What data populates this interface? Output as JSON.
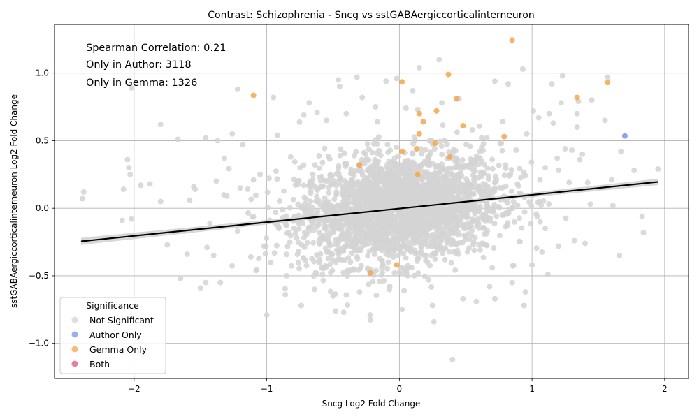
{
  "chart_data": {
    "type": "scatter",
    "title": "Contrast: Schizophrenia - Sncg vs sstGABAergiccorticalinterneuron",
    "xlabel": "Sncg Log2 Fold Change",
    "ylabel": "sstGABAergiccorticalinterneuron Log2 Fold Change",
    "xlim": [
      -2.6,
      2.18
    ],
    "ylim": [
      -1.26,
      1.36
    ],
    "xticks": [
      -2,
      -1,
      0,
      1,
      2
    ],
    "yticks": [
      -1.0,
      -0.5,
      0.0,
      0.5,
      1.0
    ],
    "xtick_labels": [
      "−2",
      "−1",
      "0",
      "1",
      "2"
    ],
    "ytick_labels": [
      "−1.0",
      "−0.5",
      "0.0",
      "0.5",
      "1.0"
    ],
    "grid": true,
    "annotations": [
      "Spearman Correlation: 0.21",
      "Only in Author: 3118",
      "Only in Gemma: 1326"
    ],
    "legend": {
      "title": "Significance",
      "placement": "lower-left",
      "entries": [
        {
          "label": "Not Significant",
          "color": "#d3d3d3"
        },
        {
          "label": "Author Only",
          "color": "#7b93e6"
        },
        {
          "label": "Gemma Only",
          "color": "#f5a54a"
        },
        {
          "label": "Both",
          "color": "#e0557a"
        }
      ]
    },
    "regression_line": {
      "x": [
        -2.4,
        1.95
      ],
      "y": [
        -0.245,
        0.195
      ],
      "color": "#000000"
    },
    "series": [
      {
        "name": "Not Significant",
        "color": "#d3d3d3",
        "points": [
          [
            -2.38,
            0.12
          ],
          [
            -2.39,
            0.07
          ],
          [
            -2.02,
            0.89
          ],
          [
            -2.05,
            0.36
          ],
          [
            -2.04,
            0.3
          ],
          [
            -2.03,
            0.25
          ],
          [
            -1.95,
            0.17
          ],
          [
            -1.88,
            0.18
          ],
          [
            -1.8,
            0.62
          ],
          [
            -1.8,
            0.05
          ],
          [
            -2.08,
            0.14
          ],
          [
            -2.09,
            -0.09
          ],
          [
            -2.02,
            -0.08
          ],
          [
            -1.75,
            -0.27
          ],
          [
            -1.67,
            0.51
          ],
          [
            -1.65,
            -0.52
          ],
          [
            -1.62,
            -0.17
          ],
          [
            -1.58,
            0.06
          ],
          [
            -1.55,
            0.16
          ],
          [
            -1.54,
            0.14
          ],
          [
            -1.5,
            -0.59
          ],
          [
            -1.46,
            -0.55
          ],
          [
            -1.46,
            0.52
          ],
          [
            -1.4,
            -0.35
          ],
          [
            -1.38,
            0.2
          ],
          [
            -1.37,
            0.5
          ],
          [
            -1.35,
            -0.55
          ],
          [
            -1.32,
            0.37
          ],
          [
            -1.3,
            0.09
          ],
          [
            -1.26,
            0.55
          ],
          [
            -1.22,
            -0.17
          ],
          [
            -1.2,
            0.15
          ],
          [
            -1.18,
            0.47
          ],
          [
            -1.12,
            -0.36
          ],
          [
            -1.08,
            -0.46
          ],
          [
            -1.05,
            0.25
          ],
          [
            -1.02,
            -0.28
          ],
          [
            -1.0,
            -0.79
          ],
          [
            -0.95,
            0.82
          ],
          [
            -0.92,
            0.54
          ],
          [
            -0.86,
            -0.64
          ],
          [
            -0.82,
            0.38
          ],
          [
            -0.74,
            -0.72
          ],
          [
            -0.72,
            0.69
          ],
          [
            -0.68,
            0.78
          ],
          [
            -0.64,
            -0.6
          ],
          [
            -0.62,
            0.71
          ],
          [
            -0.58,
            -0.49
          ],
          [
            -0.55,
            0.65
          ],
          [
            -0.5,
            -0.65
          ],
          [
            -0.46,
            0.95
          ],
          [
            -0.45,
            0.9
          ],
          [
            -0.42,
            -0.77
          ],
          [
            -0.4,
            0.7
          ],
          [
            -0.32,
            0.97
          ],
          [
            -0.3,
            -0.62
          ],
          [
            -0.28,
            0.82
          ],
          [
            -0.22,
            -0.79
          ],
          [
            -0.18,
            0.75
          ],
          [
            -0.1,
            0.94
          ],
          [
            -0.02,
            0.96
          ],
          [
            0.02,
            -0.75
          ],
          [
            0.05,
            0.74
          ],
          [
            0.1,
            0.87
          ],
          [
            0.15,
            1.04
          ],
          [
            0.22,
            -0.53
          ],
          [
            0.25,
            -0.72
          ],
          [
            0.26,
            -0.84
          ],
          [
            0.3,
            1.1
          ],
          [
            0.32,
            0.78
          ],
          [
            0.4,
            -1.12
          ],
          [
            0.45,
            0.81
          ],
          [
            0.48,
            -0.67
          ],
          [
            0.55,
            0.58
          ],
          [
            0.58,
            -0.69
          ],
          [
            0.62,
            0.45
          ],
          [
            0.68,
            -0.58
          ],
          [
            0.72,
            0.94
          ],
          [
            0.72,
            -0.67
          ],
          [
            0.78,
            0.64
          ],
          [
            0.82,
            0.92
          ],
          [
            0.85,
            -0.55
          ],
          [
            0.88,
            0.43
          ],
          [
            0.93,
            1.03
          ],
          [
            0.94,
            -0.72
          ],
          [
            0.96,
            0.55
          ],
          [
            1.0,
            -0.42
          ],
          [
            1.01,
            0.72
          ],
          [
            1.05,
            0.67
          ],
          [
            1.06,
            0.21
          ],
          [
            1.1,
            -0.15
          ],
          [
            1.12,
            -0.49
          ],
          [
            1.13,
            0.7
          ],
          [
            1.15,
            0.92
          ],
          [
            1.16,
            0.63
          ],
          [
            1.2,
            -0.28
          ],
          [
            1.22,
            0.78
          ],
          [
            1.23,
            0.98
          ],
          [
            1.25,
            0.44
          ],
          [
            1.28,
            0.19
          ],
          [
            1.3,
            0.43
          ],
          [
            1.32,
            -0.24
          ],
          [
            1.34,
            0.6
          ],
          [
            1.34,
            0.7
          ],
          [
            1.35,
            0.79
          ],
          [
            1.36,
            0.36
          ],
          [
            1.38,
            0.4
          ],
          [
            1.4,
            -0.26
          ],
          [
            1.42,
            0.19
          ],
          [
            1.44,
            0.03
          ],
          [
            1.45,
            0.8
          ],
          [
            1.55,
            0.65
          ],
          [
            1.57,
            0.97
          ],
          [
            1.6,
            0.21
          ],
          [
            1.61,
            0.02
          ],
          [
            1.66,
            -0.35
          ],
          [
            1.67,
            0.42
          ],
          [
            1.77,
            0.28
          ],
          [
            1.83,
            -0.06
          ],
          [
            1.84,
            -0.18
          ],
          [
            1.95,
            0.29
          ],
          [
            -1.22,
            0.88
          ],
          [
            -1.6,
            -0.34
          ],
          [
            -0.48,
            -0.76
          ],
          [
            0.95,
            -0.62
          ],
          [
            -1.1,
            0.21
          ],
          [
            1.19,
            0.37
          ],
          [
            -0.85,
            -0.5
          ],
          [
            0.66,
            0.52
          ],
          [
            -0.6,
            -0.38
          ],
          [
            0.7,
            -0.44
          ],
          [
            -1.45,
            -0.29
          ],
          [
            1.1,
            0.3
          ]
        ]
      },
      {
        "name": "Author Only",
        "color": "#7b93e6",
        "points": [
          [
            1.7,
            0.535
          ]
        ]
      },
      {
        "name": "Gemma Only",
        "color": "#f5a54a",
        "points": [
          [
            -1.1,
            0.835
          ],
          [
            0.02,
            0.935
          ],
          [
            0.37,
            0.99
          ],
          [
            0.85,
            1.245
          ],
          [
            0.43,
            0.81
          ],
          [
            0.28,
            0.72
          ],
          [
            0.15,
            0.7
          ],
          [
            0.18,
            0.64
          ],
          [
            0.48,
            0.61
          ],
          [
            0.15,
            0.55
          ],
          [
            0.79,
            0.53
          ],
          [
            1.34,
            0.82
          ],
          [
            1.57,
            0.93
          ],
          [
            0.13,
            0.44
          ],
          [
            0.27,
            0.48
          ],
          [
            0.38,
            0.38
          ],
          [
            -0.3,
            0.32
          ],
          [
            0.02,
            0.42
          ],
          [
            0.14,
            0.25
          ],
          [
            -0.02,
            -0.42
          ],
          [
            -0.22,
            -0.48
          ]
        ]
      },
      {
        "name": "Both",
        "color": "#e0557a",
        "points": []
      }
    ]
  }
}
